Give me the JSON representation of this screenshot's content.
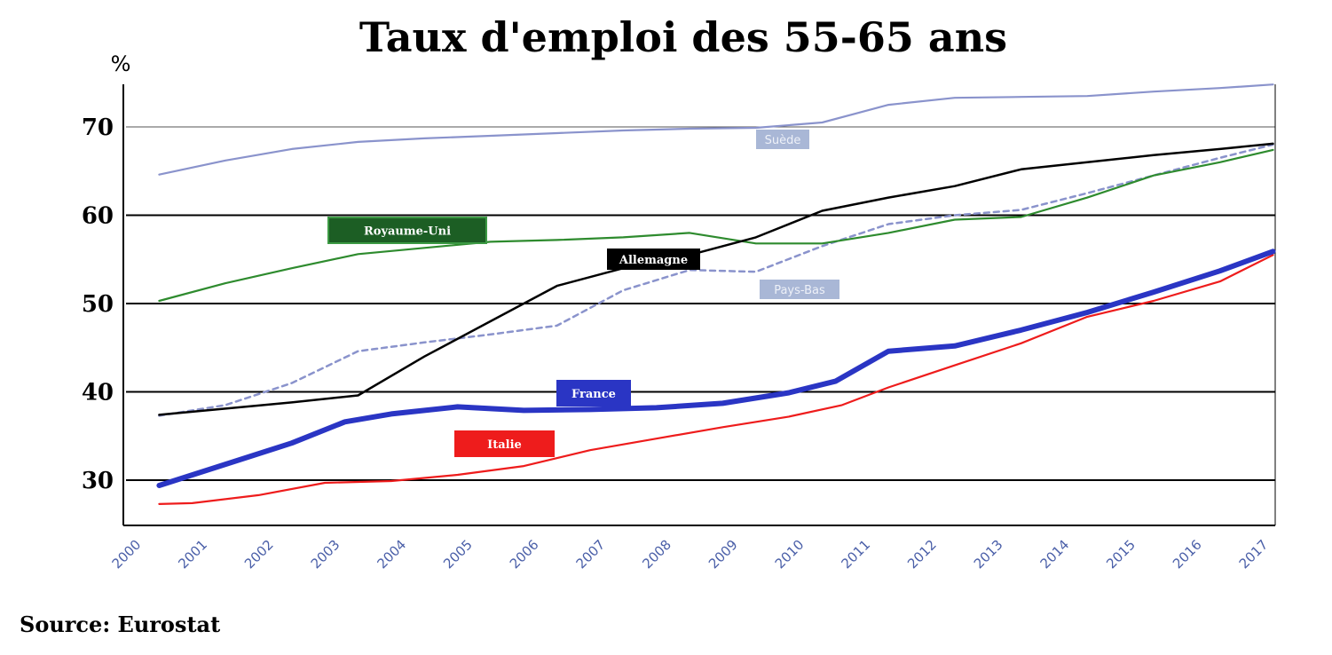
{
  "chart_data": {
    "type": "line",
    "title": "Taux d'emploi des 55-65 ans",
    "ylabel": "%",
    "xlabel": "",
    "source": "Source: Eurostat",
    "ylim": [
      25,
      75
    ],
    "xlim": [
      2000,
      2017.4
    ],
    "yticks": [
      "30",
      "40",
      "50",
      "60",
      "70"
    ],
    "xticks": [
      "2000",
      "2001",
      "2002",
      "2003",
      "2004",
      "2005",
      "2006",
      "2007",
      "2008",
      "2009",
      "2010",
      "2011",
      "2012",
      "2013",
      "2014",
      "2015",
      "2016",
      "2017"
    ],
    "grid": "horizontal",
    "colors": {
      "suede": "#8a93cc",
      "royaume_uni": "#2e8b2e",
      "allemagne": "#000000",
      "pays_bas": "#8a93cc",
      "france": "#2a35c4",
      "italie": "#ee1c1c",
      "xtick": "#4a5fa8"
    },
    "series": [
      {
        "key": "suede",
        "name": "Suède",
        "style": "line",
        "x": [
          2000.5,
          2001.5,
          2002.5,
          2003.5,
          2004.5,
          2005.5,
          2006.5,
          2007.5,
          2008.5,
          2009.5,
          2010.5,
          2011.5,
          2012.5,
          2013.5,
          2014.5,
          2015.5,
          2016.5,
          2017.3
        ],
        "y": [
          64.6,
          66.2,
          67.5,
          68.3,
          68.7,
          69.0,
          69.3,
          69.6,
          69.8,
          69.9,
          70.5,
          72.5,
          73.3,
          73.4,
          73.5,
          74.0,
          74.4,
          74.8
        ]
      },
      {
        "key": "royaume_uni",
        "name": "Royaume-Uni",
        "style": "line",
        "x": [
          2000.5,
          2001.5,
          2002.5,
          2003.5,
          2004.5,
          2005.5,
          2006.5,
          2007.5,
          2008.5,
          2009.5,
          2010.5,
          2011.5,
          2012.5,
          2013.5,
          2014.5,
          2015.5,
          2016.5,
          2017.3
        ],
        "y": [
          50.3,
          52.3,
          54.0,
          55.6,
          56.3,
          57.0,
          57.2,
          57.5,
          58.0,
          56.8,
          56.8,
          58.0,
          59.5,
          59.8,
          62.0,
          64.5,
          66.0,
          67.4
        ]
      },
      {
        "key": "allemagne",
        "name": "Allemagne",
        "style": "line",
        "x": [
          2000.5,
          2001.5,
          2002.5,
          2003.5,
          2004.5,
          2005.5,
          2006.5,
          2007.5,
          2008.5,
          2009.5,
          2010.5,
          2011.5,
          2012.5,
          2013.5,
          2014.5,
          2015.5,
          2016.5,
          2017.3
        ],
        "y": [
          37.4,
          38.1,
          38.8,
          39.6,
          44.0,
          48.0,
          52.0,
          54.0,
          55.5,
          57.5,
          60.5,
          62.0,
          63.3,
          65.2,
          66.0,
          66.8,
          67.5,
          68.1
        ]
      },
      {
        "key": "pays_bas",
        "name": "Pays-Bas",
        "style": "dashed",
        "x": [
          2000.5,
          2001.5,
          2002.5,
          2003.5,
          2004.5,
          2005.5,
          2006.5,
          2007.5,
          2008.5,
          2009.5,
          2010.5,
          2011.5,
          2012.5,
          2013.5,
          2014.5,
          2015.5,
          2016.5,
          2017.3
        ],
        "y": [
          37.3,
          38.5,
          41.0,
          44.6,
          45.6,
          46.5,
          47.5,
          51.5,
          53.8,
          53.6,
          56.5,
          59.0,
          60.0,
          60.6,
          62.5,
          64.5,
          66.5,
          68.0
        ]
      },
      {
        "key": "france",
        "name": "France",
        "style": "thick",
        "x": [
          2000.5,
          2001.5,
          2002.5,
          2003.3,
          2004.0,
          2005.0,
          2006.0,
          2007.0,
          2008.0,
          2009.0,
          2010.0,
          2010.7,
          2011.5,
          2012.5,
          2013.5,
          2014.5,
          2015.5,
          2016.5,
          2017.3
        ],
        "y": [
          29.4,
          31.8,
          34.2,
          36.6,
          37.5,
          38.3,
          37.9,
          38.0,
          38.2,
          38.7,
          39.9,
          41.2,
          44.6,
          45.2,
          47.0,
          49.0,
          51.3,
          53.7,
          55.9
        ]
      },
      {
        "key": "italie",
        "name": "Italie",
        "style": "line",
        "x": [
          2000.5,
          2001.0,
          2002.0,
          2003.0,
          2004.0,
          2005.0,
          2006.0,
          2007.0,
          2008.0,
          2009.0,
          2010.0,
          2010.8,
          2011.5,
          2012.5,
          2013.5,
          2014.5,
          2015.5,
          2016.5,
          2017.3
        ],
        "y": [
          27.3,
          27.4,
          28.3,
          29.7,
          29.9,
          30.6,
          31.6,
          33.4,
          34.7,
          36.0,
          37.2,
          38.5,
          40.5,
          43.0,
          45.5,
          48.5,
          50.3,
          52.5,
          55.5
        ]
      }
    ],
    "labels": [
      {
        "series": "suede",
        "text": "Suède",
        "box": "#a9b7d6",
        "style": "sans"
      },
      {
        "series": "royaume_uni",
        "text": "Royaume-Uni",
        "box": "#1c5e24",
        "style": "serif"
      },
      {
        "series": "allemagne",
        "text": "Allemagne",
        "box": "#000000",
        "style": "serif"
      },
      {
        "series": "pays_bas",
        "text": "Pays-Bas",
        "box": "#a9b7d6",
        "style": "sans"
      },
      {
        "series": "france",
        "text": "France",
        "box": "#2a35c4",
        "style": "serif"
      },
      {
        "series": "italie",
        "text": "Italie",
        "box": "#ee1c1c",
        "style": "serif"
      }
    ]
  }
}
